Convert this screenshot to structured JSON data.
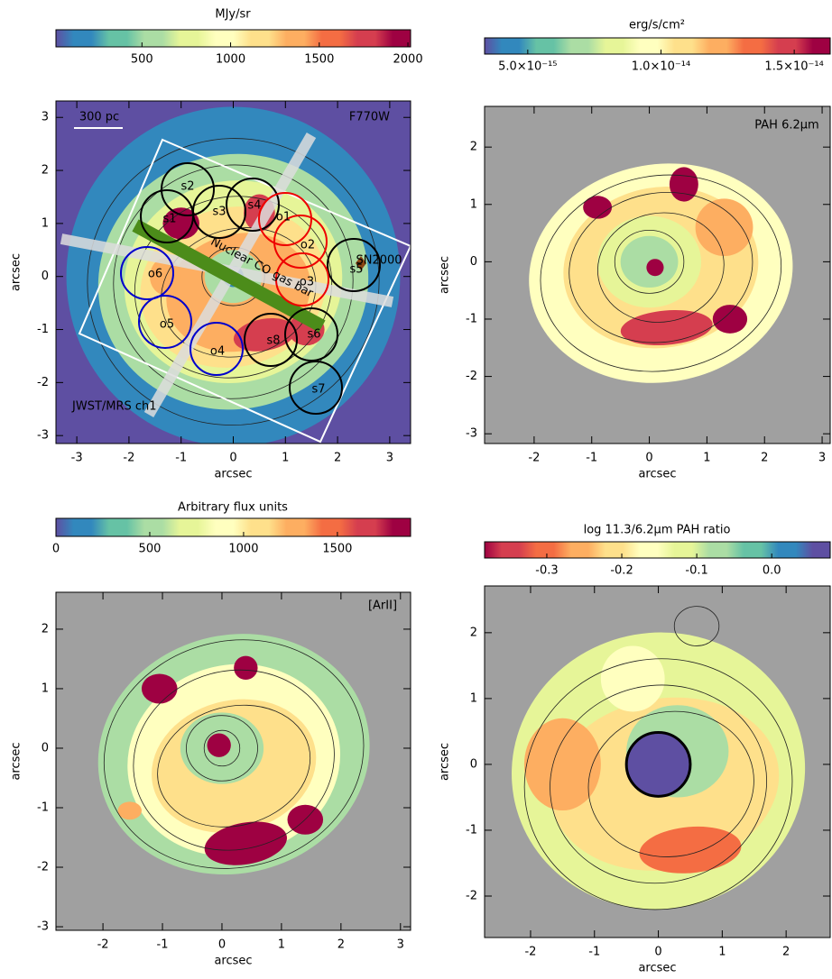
{
  "chart_data": [
    {
      "type": "heatmap",
      "colorbar_label": "MJy/sr",
      "colormap": "Spectral_r",
      "clim": [
        15,
        2015
      ],
      "cticks": [
        500,
        1000,
        1500,
        2000
      ],
      "xlabel": "arcsec",
      "ylabel": "arcsec",
      "xlim": [
        -3.4,
        3.4
      ],
      "ylim": [
        -3.15,
        3.31
      ],
      "xticks": [
        -3,
        -2,
        -1,
        0,
        1,
        2,
        3
      ],
      "yticks": [
        -3,
        -2,
        -1,
        0,
        1,
        2,
        3
      ],
      "background": "#5e4fa2",
      "annotations": [
        "300 pc",
        "F770W",
        "JWST/MRS ch1",
        "Nuclear CO gas bar",
        "s1",
        "s2",
        "s3",
        "s4",
        "s5",
        "s6",
        "s7",
        "s8",
        "o1",
        "o2",
        "o3",
        "o4",
        "o5",
        "o6",
        "SN2000"
      ]
    },
    {
      "type": "heatmap",
      "colorbar_label": "erg/s/cm²",
      "colormap": "Spectral_r",
      "clim": [
        3.38e-15,
        1.635e-14
      ],
      "cticks": [
        {
          "value": 5e-15,
          "label": "5.0×10⁻¹⁵"
        },
        {
          "value": 1e-14,
          "label": "1.0×10⁻¹⁴"
        },
        {
          "value": 1.5e-14,
          "label": "1.5×10⁻¹⁴"
        }
      ],
      "xlabel": "arcsec",
      "ylabel": "arcsec",
      "xlim": [
        -2.86,
        3.14
      ],
      "ylim": [
        -3.17,
        2.71
      ],
      "xticks": [
        -2,
        -1,
        0,
        1,
        2,
        3
      ],
      "yticks": [
        -3,
        -2,
        -1,
        0,
        1,
        2
      ],
      "background": "#a0a0a0",
      "annotations": [
        "PAH 6.2μm"
      ]
    },
    {
      "type": "heatmap",
      "colorbar_label": "Arbitrary flux units",
      "colormap": "Spectral_r",
      "clim": [
        0,
        1890
      ],
      "cticks": [
        0,
        500,
        1000,
        1500
      ],
      "xlabel": "arcsec",
      "ylabel": "arcsec",
      "xlim": [
        -2.79,
        3.17
      ],
      "ylim": [
        -3.06,
        2.62
      ],
      "xticks": [
        -2,
        -1,
        0,
        1,
        2,
        3
      ],
      "yticks": [
        -3,
        -2,
        -1,
        0,
        1,
        2
      ],
      "background": "#a0a0a0",
      "annotations": [
        "[ArII]"
      ]
    },
    {
      "type": "heatmap",
      "colorbar_label": "log 11.3/6.2μm PAH ratio",
      "colormap": "Spectral",
      "clim": [
        -0.383,
        0.078
      ],
      "cticks": [
        -0.3,
        -0.2,
        -0.1,
        {
          "value": 0,
          "label": "0.0"
        }
      ],
      "xlabel": "arcsec",
      "ylabel": "arcsec",
      "xlim": [
        -2.72,
        2.69
      ],
      "ylim": [
        -2.63,
        2.71
      ],
      "xticks": [
        -2,
        -1,
        0,
        1,
        2
      ],
      "yticks": [
        -2,
        -1,
        0,
        1,
        2
      ],
      "background": "#a0a0a0",
      "annotations": []
    }
  ]
}
